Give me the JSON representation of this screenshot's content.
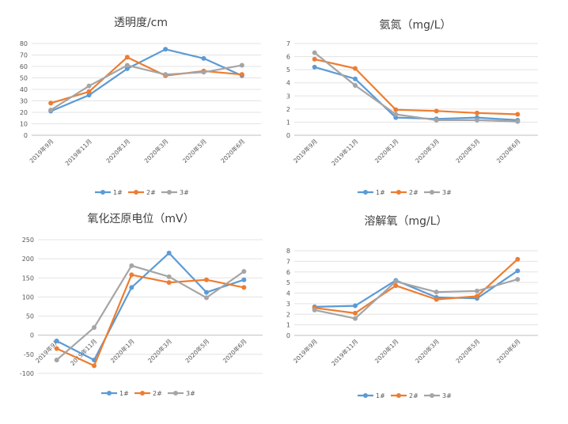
{
  "categories": [
    "2019年9月",
    "2019年11月",
    "2020年1月",
    "2020年3月",
    "2020年5月",
    "2020年6月"
  ],
  "colors": {
    "s1": "#5B9BD5",
    "s2": "#ED7D31",
    "s3": "#A5A5A5"
  },
  "chart_data": [
    {
      "type": "line",
      "title": "透明度/cm",
      "categories": [
        "2019年9月",
        "2019年11月",
        "2020年1月",
        "2020年3月",
        "2020年5月",
        "2020年6月"
      ],
      "ylim": [
        0,
        80
      ],
      "yticks": [
        "0",
        "10",
        "20",
        "30",
        "40",
        "50",
        "60",
        "70",
        "80"
      ],
      "series": [
        {
          "name": "1#",
          "values": [
            21,
            35,
            58,
            75,
            67,
            52
          ]
        },
        {
          "name": "2#",
          "values": [
            28,
            38,
            68,
            52,
            56,
            53
          ]
        },
        {
          "name": "3#",
          "values": [
            22,
            43,
            61,
            53,
            55,
            61
          ]
        }
      ]
    },
    {
      "type": "line",
      "title": "氨氮（mg/L）",
      "categories": [
        "2019年9月",
        "2019年11月",
        "2020年1月",
        "2020年3月",
        "2020年5月",
        "2020年6月"
      ],
      "ylim": [
        0,
        7
      ],
      "yticks": [
        "0",
        "1",
        "2",
        "3",
        "4",
        "5",
        "6",
        "7"
      ],
      "series": [
        {
          "name": "1#",
          "values": [
            5.2,
            4.3,
            1.35,
            1.25,
            1.35,
            1.15
          ]
        },
        {
          "name": "2#",
          "values": [
            5.8,
            5.1,
            1.95,
            1.85,
            1.7,
            1.6
          ]
        },
        {
          "name": "3#",
          "values": [
            6.3,
            3.8,
            1.6,
            1.15,
            1.15,
            1.05
          ]
        }
      ]
    },
    {
      "type": "line",
      "title": "氧化还原电位（mV）",
      "categories": [
        "2019年9月",
        "2019年11月",
        "2020年1月",
        "2020年3月",
        "2020年5月",
        "2020年6月"
      ],
      "ylim": [
        -100,
        250
      ],
      "yticks": [
        "-100",
        "-50",
        "0",
        "50",
        "100",
        "150",
        "200",
        "250"
      ],
      "series": [
        {
          "name": "1#",
          "values": [
            -15,
            -65,
            125,
            215,
            112,
            145
          ]
        },
        {
          "name": "2#",
          "values": [
            -35,
            -80,
            158,
            138,
            145,
            125
          ]
        },
        {
          "name": "3#",
          "values": [
            -65,
            20,
            182,
            153,
            98,
            167
          ]
        }
      ]
    },
    {
      "type": "line",
      "title": "溶解氧（mg/L）",
      "categories": [
        "2019年9月",
        "2019年11月",
        "2020年1月",
        "2020年3月",
        "2020年5月",
        "2020年6月"
      ],
      "ylim": [
        0,
        8
      ],
      "yticks": [
        "0",
        "1",
        "2",
        "3",
        "4",
        "5",
        "6",
        "7",
        "8"
      ],
      "series": [
        {
          "name": "1#",
          "values": [
            2.7,
            2.8,
            5.2,
            3.6,
            3.5,
            6.1
          ]
        },
        {
          "name": "2#",
          "values": [
            2.6,
            2.1,
            4.7,
            3.4,
            3.7,
            7.2
          ]
        },
        {
          "name": "3#",
          "values": [
            2.4,
            1.6,
            5.1,
            4.1,
            4.2,
            5.3
          ]
        }
      ]
    }
  ]
}
